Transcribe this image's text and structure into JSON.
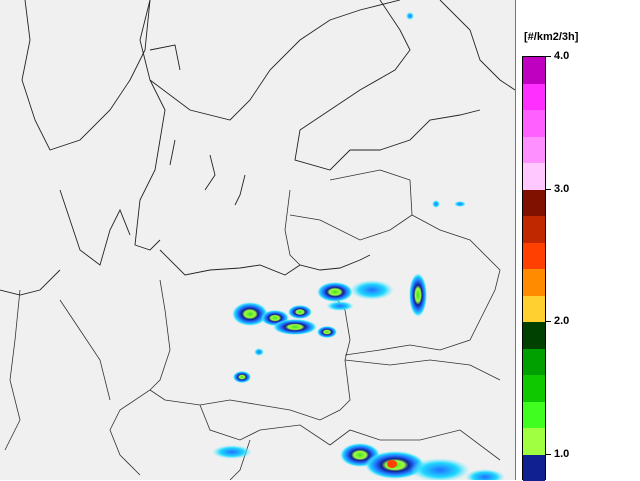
{
  "legend": {
    "unit": "[#/km2/3h]",
    "ticks": [
      {
        "value": 4.0,
        "label": "4.0"
      },
      {
        "value": 3.0,
        "label": "3.0"
      },
      {
        "value": 2.0,
        "label": "2.0"
      },
      {
        "value": 1.0,
        "label": "1.0"
      }
    ],
    "range": [
      0.8,
      4.0
    ],
    "colors_top_to_bottom": [
      "#c000c0",
      "#ff30ff",
      "#ff60ff",
      "#ff90ff",
      "#ffc8ff",
      "#801000",
      "#c02800",
      "#ff4000",
      "#ff8c00",
      "#ffd030",
      "#004000",
      "#00a000",
      "#10c800",
      "#40ff20",
      "#a0ff40",
      "#102090"
    ]
  },
  "map": {
    "background": "#f0f0f0",
    "region": "Northern/Central Europe",
    "layers": [
      "coastlines",
      "country-borders",
      "lightning-density"
    ]
  }
}
